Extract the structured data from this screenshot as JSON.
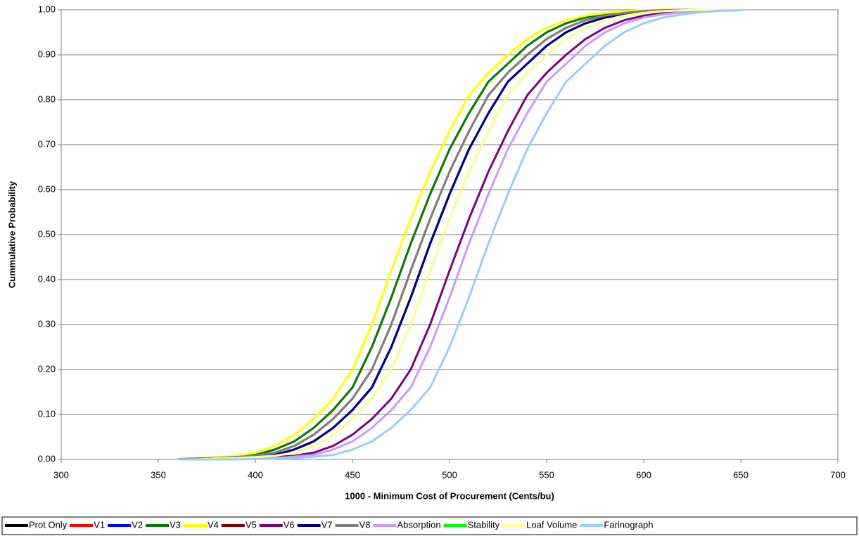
{
  "chart_data": {
    "type": "line",
    "x_label": "1000 - Minimum Cost of Procurement (Cents/bu)",
    "y_label": "Cummulative Probability",
    "x": [
      360,
      370,
      380,
      390,
      400,
      410,
      420,
      430,
      440,
      450,
      460,
      470,
      480,
      490,
      500,
      510,
      520,
      530,
      540,
      550,
      560,
      570,
      580,
      590,
      600,
      610,
      620,
      630,
      640,
      650
    ],
    "xlim": [
      300,
      700
    ],
    "xticks": [
      300,
      350,
      400,
      450,
      500,
      550,
      600,
      650,
      700
    ],
    "ylim": [
      0,
      1
    ],
    "yticks": [
      {
        "value": 0,
        "label": "0.00"
      },
      {
        "value": 0.1,
        "label": "0.10"
      },
      {
        "value": 0.2,
        "label": "0.20"
      },
      {
        "value": 0.3,
        "label": "0.30"
      },
      {
        "value": 0.4,
        "label": "0.40"
      },
      {
        "value": 0.5,
        "label": "0.50"
      },
      {
        "value": 0.6,
        "label": "0.60"
      },
      {
        "value": 0.7,
        "label": "0.70"
      },
      {
        "value": 0.8,
        "label": "0.80"
      },
      {
        "value": 0.9,
        "label": "0.90"
      },
      {
        "value": 1,
        "label": "1.00"
      }
    ],
    "grid": true,
    "legend": "bottom",
    "series": [
      {
        "name": "Prot Only",
        "color": "#000000",
        "values": [
          0,
          0.001,
          0.002,
          0.003,
          0.006,
          0.01,
          0.022,
          0.04,
          0.07,
          0.11,
          0.16,
          0.25,
          0.36,
          0.48,
          0.59,
          0.69,
          0.77,
          0.84,
          0.88,
          0.92,
          0.95,
          0.97,
          0.983,
          0.99,
          0.995,
          0.998,
          0.999,
          1,
          1,
          1
        ]
      },
      {
        "name": "V1",
        "color": "#ff0000",
        "values": [
          0.001,
          0.002,
          0.003,
          0.006,
          0.01,
          0.022,
          0.04,
          0.07,
          0.11,
          0.16,
          0.25,
          0.36,
          0.48,
          0.59,
          0.69,
          0.77,
          0.84,
          0.88,
          0.92,
          0.95,
          0.97,
          0.983,
          0.99,
          0.995,
          0.998,
          0.999,
          1,
          1,
          1,
          1
        ]
      },
      {
        "name": "V2",
        "color": "#0000ff",
        "values": [
          0,
          0.001,
          0.002,
          0.003,
          0.006,
          0.01,
          0.022,
          0.04,
          0.07,
          0.11,
          0.16,
          0.25,
          0.36,
          0.48,
          0.59,
          0.69,
          0.77,
          0.84,
          0.88,
          0.92,
          0.95,
          0.97,
          0.983,
          0.99,
          0.995,
          0.998,
          0.999,
          1,
          1,
          1
        ]
      },
      {
        "name": "V3",
        "color": "#008000",
        "values": [
          0.001,
          0.002,
          0.003,
          0.006,
          0.01,
          0.022,
          0.04,
          0.07,
          0.11,
          0.16,
          0.25,
          0.36,
          0.48,
          0.59,
          0.69,
          0.77,
          0.84,
          0.88,
          0.92,
          0.95,
          0.97,
          0.983,
          0.99,
          0.995,
          0.998,
          0.999,
          1,
          1,
          1,
          1
        ]
      },
      {
        "name": "V4",
        "color": "#ffff00",
        "values": [
          0.002,
          0.003,
          0.005,
          0.008,
          0.015,
          0.03,
          0.055,
          0.09,
          0.135,
          0.2,
          0.3,
          0.42,
          0.535,
          0.64,
          0.73,
          0.81,
          0.86,
          0.9,
          0.935,
          0.96,
          0.977,
          0.987,
          0.993,
          0.997,
          0.999,
          1,
          1,
          1,
          1,
          1
        ]
      },
      {
        "name": "V5",
        "color": "#800000",
        "values": [
          0,
          0.002,
          0.003,
          0.005,
          0.008,
          0.015,
          0.03,
          0.055,
          0.09,
          0.135,
          0.2,
          0.3,
          0.42,
          0.535,
          0.64,
          0.73,
          0.81,
          0.86,
          0.9,
          0.935,
          0.96,
          0.977,
          0.987,
          0.993,
          0.997,
          0.999,
          1,
          1,
          1,
          1
        ]
      },
      {
        "name": "V6",
        "color": "#800080",
        "values": [
          0,
          0,
          0,
          0.002,
          0.003,
          0.005,
          0.008,
          0.015,
          0.03,
          0.055,
          0.09,
          0.135,
          0.2,
          0.3,
          0.42,
          0.535,
          0.64,
          0.73,
          0.81,
          0.86,
          0.9,
          0.935,
          0.96,
          0.977,
          0.987,
          0.993,
          0.997,
          0.999,
          1,
          1
        ]
      },
      {
        "name": "V7",
        "color": "#000080",
        "values": [
          0,
          0.001,
          0.002,
          0.003,
          0.006,
          0.01,
          0.022,
          0.04,
          0.07,
          0.11,
          0.16,
          0.25,
          0.36,
          0.48,
          0.59,
          0.69,
          0.77,
          0.84,
          0.88,
          0.92,
          0.95,
          0.97,
          0.983,
          0.99,
          0.995,
          0.998,
          0.999,
          1,
          1,
          1
        ]
      },
      {
        "name": "V8",
        "color": "#808080",
        "values": [
          0,
          0.002,
          0.003,
          0.005,
          0.008,
          0.015,
          0.03,
          0.055,
          0.09,
          0.135,
          0.2,
          0.3,
          0.42,
          0.535,
          0.64,
          0.73,
          0.81,
          0.86,
          0.9,
          0.935,
          0.96,
          0.977,
          0.987,
          0.993,
          0.997,
          0.999,
          1,
          1,
          1,
          1
        ]
      },
      {
        "name": "Absorption",
        "color": "#cc99ff",
        "values": [
          0,
          0,
          0,
          0.001,
          0.002,
          0.003,
          0.006,
          0.01,
          0.022,
          0.04,
          0.07,
          0.11,
          0.16,
          0.25,
          0.36,
          0.48,
          0.59,
          0.69,
          0.77,
          0.84,
          0.88,
          0.92,
          0.95,
          0.97,
          0.983,
          0.99,
          0.995,
          0.998,
          0.999,
          1
        ]
      },
      {
        "name": "Stability",
        "color": "#00ff00",
        "values": [
          0,
          0,
          0.002,
          0.003,
          0.005,
          0.008,
          0.015,
          0.03,
          0.055,
          0.09,
          0.135,
          0.2,
          0.3,
          0.42,
          0.535,
          0.64,
          0.73,
          0.81,
          0.86,
          0.9,
          0.935,
          0.96,
          0.977,
          0.987,
          0.993,
          0.997,
          0.999,
          1,
          1,
          1
        ]
      },
      {
        "name": "Loaf Volume",
        "color": "#ffff99",
        "values": [
          0,
          0,
          0.002,
          0.003,
          0.005,
          0.008,
          0.015,
          0.03,
          0.055,
          0.09,
          0.135,
          0.2,
          0.3,
          0.42,
          0.535,
          0.64,
          0.73,
          0.81,
          0.86,
          0.9,
          0.935,
          0.96,
          0.977,
          0.987,
          0.993,
          0.997,
          0.999,
          1,
          1,
          1
        ]
      },
      {
        "name": "Farinograph",
        "color": "#99ccff",
        "values": [
          0,
          0,
          0,
          0,
          0.001,
          0.002,
          0.003,
          0.006,
          0.01,
          0.022,
          0.04,
          0.07,
          0.11,
          0.16,
          0.25,
          0.36,
          0.48,
          0.59,
          0.69,
          0.77,
          0.84,
          0.88,
          0.92,
          0.95,
          0.97,
          0.983,
          0.99,
          0.995,
          0.998,
          0.999
        ]
      }
    ]
  }
}
